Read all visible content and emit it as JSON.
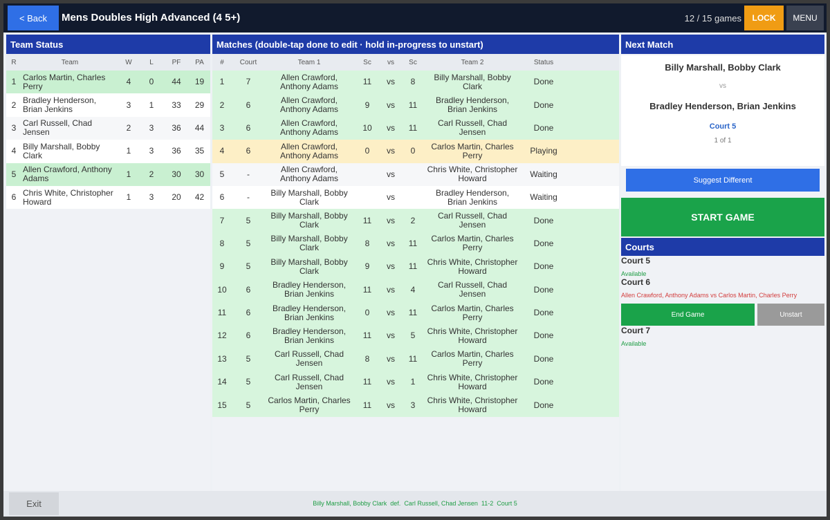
{
  "header": {
    "back": "< Back",
    "title": "Mens Doubles High Advanced (4 5+)",
    "progress": "12 / 15 games",
    "lock": "LOCK",
    "menu": "MENU"
  },
  "team_status": {
    "title": "Team Status",
    "columns": [
      "R",
      "Team",
      "W",
      "L",
      "PF",
      "PA"
    ],
    "rows": [
      [
        1,
        "Carlos Martin, Charles Perry",
        4,
        0,
        44,
        19
      ],
      [
        2,
        "Bradley Henderson, Brian Jenkins",
        3,
        1,
        33,
        29
      ],
      [
        3,
        "Carl Russell, Chad Jensen",
        2,
        3,
        36,
        44
      ],
      [
        4,
        "Billy Marshall, Bobby Clark",
        1,
        3,
        36,
        35
      ],
      [
        5,
        "Allen Crawford, Anthony Adams",
        1,
        2,
        30,
        30
      ],
      [
        6,
        "Chris White, Christopher Howard",
        1,
        3,
        20,
        42
      ]
    ],
    "row_colors": [
      "#c9f0d1",
      "#ffffff",
      "#f6f7f9",
      "#ffffff",
      "#c9f0d1",
      "#ffffff"
    ]
  },
  "matches": {
    "title": "Matches  (double-tap done to edit · hold in-progress to unstart)",
    "columns": [
      "#",
      "Court",
      "Team 1",
      "Sc",
      "vs",
      "Sc",
      "Team 2",
      "Status"
    ],
    "rows": [
      [
        1,
        7,
        "Allen Crawford, Anthony Adams",
        11,
        "vs",
        8,
        "Billy Marshall, Bobby Clark",
        "Done"
      ],
      [
        2,
        6,
        "Allen Crawford, Anthony Adams",
        9,
        "vs",
        11,
        "Bradley Henderson, Brian Jenkins",
        "Done"
      ],
      [
        3,
        6,
        "Allen Crawford, Anthony Adams",
        10,
        "vs",
        11,
        "Carl Russell, Chad Jensen",
        "Done"
      ],
      [
        4,
        6,
        "Allen Crawford, Anthony Adams",
        0,
        "vs",
        0,
        "Carlos Martin, Charles Perry",
        "Playing"
      ],
      [
        5,
        "-",
        "Allen Crawford, Anthony Adams",
        null,
        "vs",
        null,
        "Chris White, Christopher Howard",
        "Waiting"
      ],
      [
        6,
        "-",
        "Billy Marshall, Bobby Clark",
        null,
        "vs",
        null,
        "Bradley Henderson, Brian Jenkins",
        "Waiting"
      ],
      [
        7,
        5,
        "Billy Marshall, Bobby Clark",
        11,
        "vs",
        2,
        "Carl Russell, Chad Jensen",
        "Done"
      ],
      [
        8,
        5,
        "Billy Marshall, Bobby Clark",
        8,
        "vs",
        11,
        "Carlos Martin, Charles Perry",
        "Done"
      ],
      [
        9,
        5,
        "Billy Marshall, Bobby Clark",
        9,
        "vs",
        11,
        "Chris White, Christopher Howard",
        "Done"
      ],
      [
        10,
        6,
        "Bradley Henderson, Brian Jenkins",
        11,
        "vs",
        4,
        "Carl Russell, Chad Jensen",
        "Done"
      ],
      [
        11,
        6,
        "Bradley Henderson, Brian Jenkins",
        0,
        "vs",
        11,
        "Carlos Martin, Charles Perry",
        "Done"
      ],
      [
        12,
        6,
        "Bradley Henderson, Brian Jenkins",
        11,
        "vs",
        5,
        "Chris White, Christopher Howard",
        "Done"
      ],
      [
        13,
        5,
        "Carl Russell, Chad Jensen",
        8,
        "vs",
        11,
        "Carlos Martin, Charles Perry",
        "Done"
      ],
      [
        14,
        5,
        "Carl Russell, Chad Jensen",
        11,
        "vs",
        1,
        "Chris White, Christopher Howard",
        "Done"
      ],
      [
        15,
        5,
        "Carlos Martin, Charles Perry",
        11,
        "vs",
        3,
        "Chris White, Christopher Howard",
        "Done"
      ]
    ],
    "row_colors": [
      "#d7f5dd",
      "#d7f5dd",
      "#d7f5dd",
      "#fdefc6",
      "#f6f7f9",
      "#ffffff",
      "#d7f5dd",
      "#d7f5dd",
      "#d7f5dd",
      "#d7f5dd",
      "#d7f5dd",
      "#d7f5dd",
      "#d7f5dd",
      "#d7f5dd",
      "#d7f5dd"
    ]
  },
  "next_match": {
    "title": "Next Match",
    "team1": "Billy Marshall, Bobby Clark",
    "vs": "vs",
    "team2": "Bradley Henderson, Brian Jenkins",
    "court": "Court 5",
    "count": "1 of 1",
    "suggest": "Suggest Different",
    "start": "START GAME"
  },
  "courts": {
    "title": "Courts",
    "items": [
      {
        "name": "Court 5",
        "status": "Available",
        "status_color": "#1f9d45"
      },
      {
        "name": "Court 6",
        "status": "Allen Crawford, Anthony Adams vs Carlos Martin, Charles Perry",
        "status_color": "#d23b3b",
        "actions": [
          "End Game",
          "Unstart"
        ]
      },
      {
        "name": "Court 7",
        "status": "Available",
        "status_color": "#1f9d45"
      }
    ]
  },
  "footer": {
    "exit": "Exit",
    "result": "Billy Marshall, Bobby Clark  def.  Carl Russell, Chad Jensen  11-2  Court 5"
  }
}
